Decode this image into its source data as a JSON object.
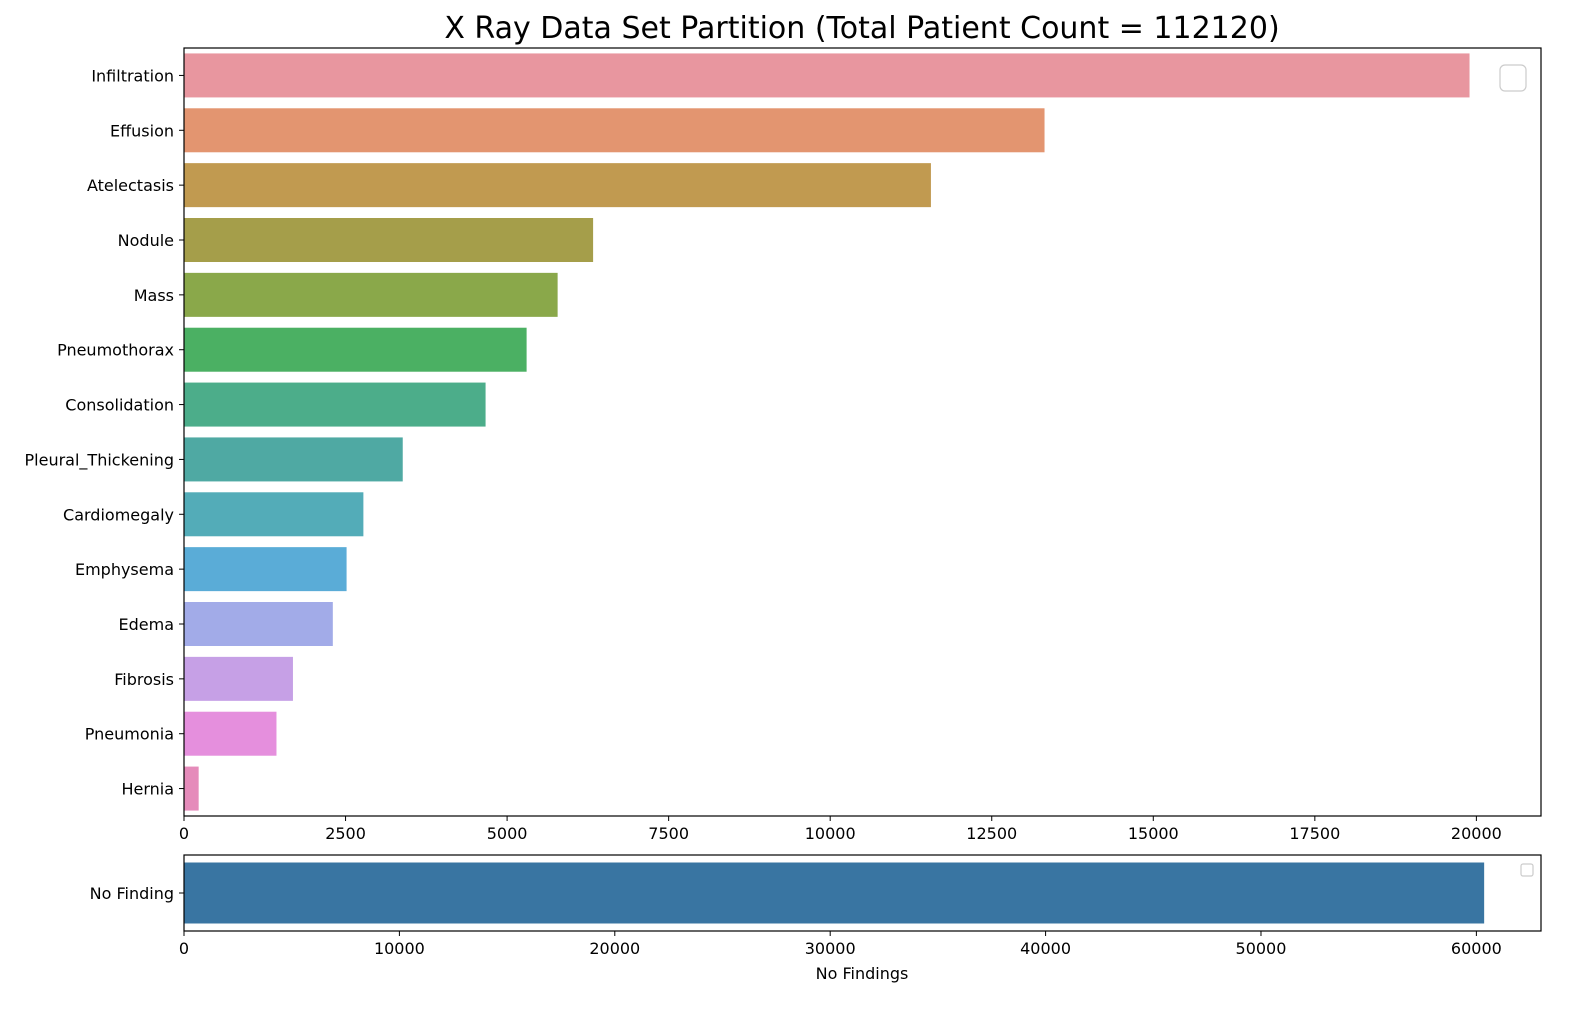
{
  "chart_data": [
    {
      "type": "bar",
      "orientation": "horizontal",
      "title": "X Ray Data Set Partition (Total Patient Count = 112120)",
      "categories": [
        "Infiltration",
        "Effusion",
        "Atelectasis",
        "Nodule",
        "Mass",
        "Pneumothorax",
        "Consolidation",
        "Pleural_Thickening",
        "Cardiomegaly",
        "Emphysema",
        "Edema",
        "Fibrosis",
        "Pneumonia",
        "Hernia"
      ],
      "values": [
        19894,
        13317,
        11559,
        6331,
        5782,
        5302,
        4667,
        3385,
        2776,
        2516,
        2303,
        1686,
        1431,
        227
      ],
      "colors": [
        "#e8969f",
        "#e39570",
        "#c19a50",
        "#a59e4a",
        "#8aa84a",
        "#4bb063",
        "#4cad8a",
        "#4fa9a3",
        "#53acb8",
        "#5aacd7",
        "#a2abe8",
        "#c6a0e6",
        "#e58fdd",
        "#e58bba"
      ],
      "xlim": [
        0,
        21000
      ],
      "xticks": [
        0,
        2500,
        5000,
        7500,
        10000,
        12500,
        15000,
        17500,
        20000
      ],
      "xlabel": "",
      "legend": "empty box top-right"
    },
    {
      "type": "bar",
      "orientation": "horizontal",
      "categories": [
        "No Finding"
      ],
      "values": [
        60361
      ],
      "colors": [
        "#3975a2"
      ],
      "xlim": [
        0,
        63000
      ],
      "xticks": [
        0,
        10000,
        20000,
        30000,
        40000,
        50000,
        60000
      ],
      "xlabel": "No Findings",
      "legend": "empty box top-right"
    }
  ]
}
